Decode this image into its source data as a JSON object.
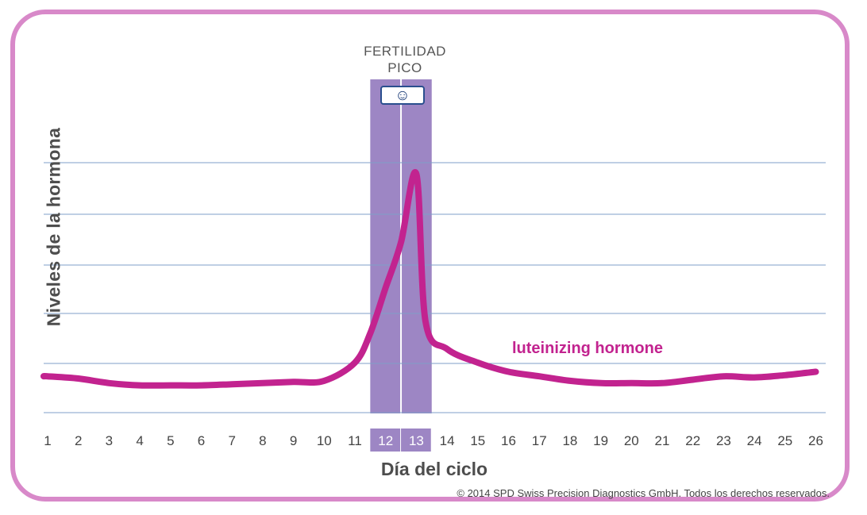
{
  "chart_data": {
    "type": "line",
    "title": "",
    "xlabel": "Día del ciclo",
    "ylabel": "Niveles de la hormona",
    "x": [
      1,
      2,
      3,
      4,
      5,
      6,
      7,
      8,
      9,
      10,
      11,
      11.5,
      12,
      12.5,
      13,
      13.3,
      14,
      15,
      16,
      17,
      18,
      19,
      20,
      21,
      22,
      23,
      24,
      25,
      26
    ],
    "categories": [
      "1",
      "2",
      "3",
      "4",
      "5",
      "6",
      "7",
      "8",
      "9",
      "10",
      "11",
      "12",
      "13",
      "14",
      "15",
      "16",
      "17",
      "18",
      "19",
      "20",
      "21",
      "22",
      "23",
      "24",
      "25",
      "26"
    ],
    "series": [
      {
        "name": "luteinizing hormone",
        "values": [
          0.6,
          0.5,
          0.3,
          0.2,
          0.2,
          0.2,
          0.25,
          0.3,
          0.35,
          0.4,
          1.2,
          2.5,
          4.5,
          6.5,
          9.5,
          3.0,
          1.8,
          1.2,
          0.8,
          0.6,
          0.4,
          0.3,
          0.3,
          0.3,
          0.45,
          0.6,
          0.55,
          0.65,
          0.8
        ]
      }
    ],
    "ylim": [
      -1,
      10
    ],
    "grid": true,
    "highlight": {
      "label_line1": "FERTILIDAD",
      "label_line2": "PICO",
      "days": [
        "12",
        "13"
      ],
      "icon": "smiley-icon"
    }
  },
  "copyright": "© 2014 SPD Swiss Precision Diagnostics GmbH. Todos los derechos reservados.",
  "colors": {
    "border": "#d889c9",
    "line": "#c2238f",
    "highlight": "#9d86c4",
    "grid": "#7f9fc8"
  }
}
